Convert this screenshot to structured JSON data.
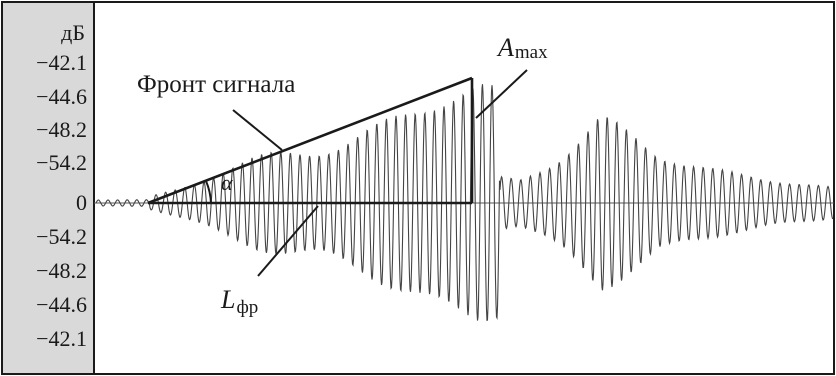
{
  "axis": {
    "unit": "дБ",
    "ticks": [
      "−42.1",
      "−44.6",
      "−48.2",
      "−54.2",
      "0",
      "−54.2",
      "−48.2",
      "−44.6",
      "−42.1"
    ]
  },
  "annotations": {
    "front_label": "Фронт сигнала",
    "angle_label": "α",
    "amax_main": "A",
    "amax_sub": "max",
    "lfr_main": "L",
    "lfr_sub": "фр"
  },
  "colors": {
    "panel": "#d9d9d9",
    "ink": "#1a1a1a",
    "signal": "#444444"
  }
}
